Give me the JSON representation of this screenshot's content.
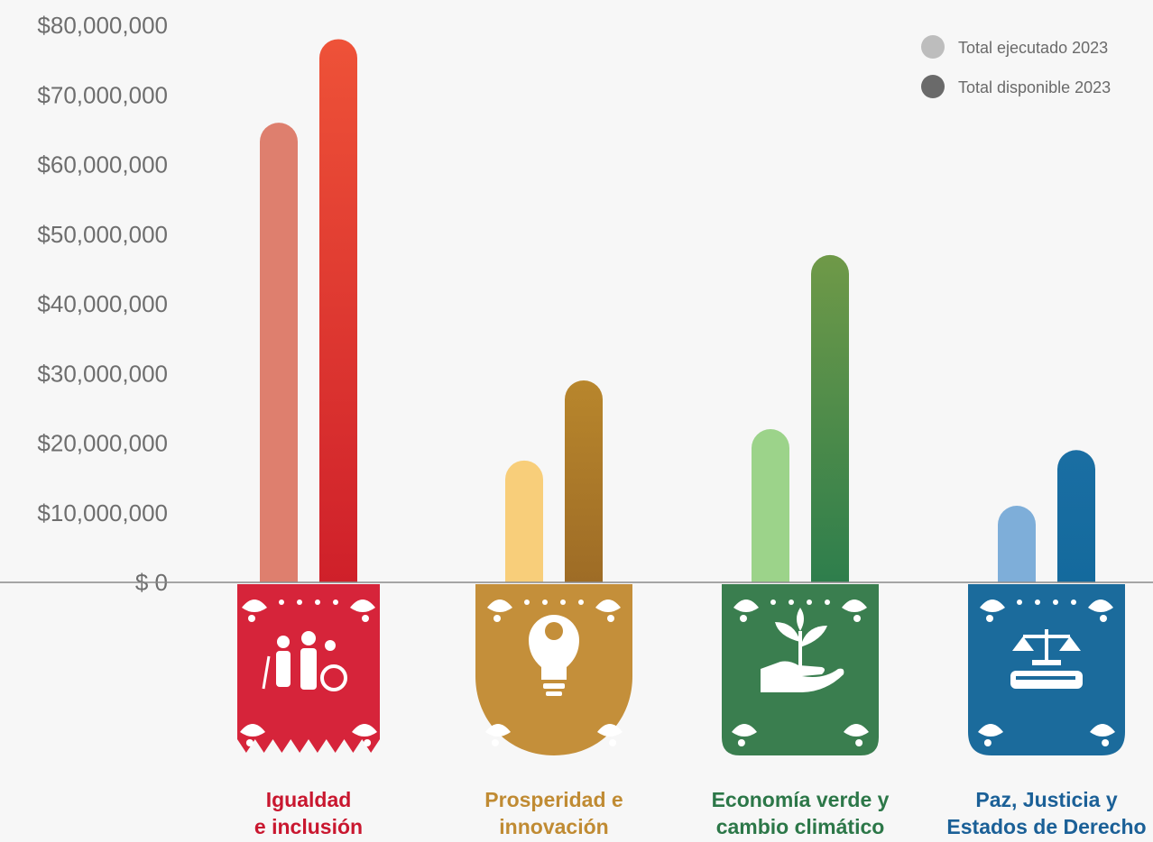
{
  "chart_data": {
    "type": "bar",
    "categories": [
      [
        "Igualdad",
        "e inclusión"
      ],
      [
        "Prosperidad e",
        "innovación"
      ],
      [
        "Economía verde y",
        "cambio climático"
      ],
      [
        "Paz, Justicia y",
        "Estados de Derecho"
      ]
    ],
    "series": [
      {
        "name": "Total ejecutado 2023",
        "values": [
          66000000,
          17500000,
          22000000,
          11000000
        ]
      },
      {
        "name": "Total disponible 2023",
        "values": [
          78000000,
          29000000,
          47000000,
          19000000
        ]
      }
    ],
    "ylim": [
      0,
      80000000
    ],
    "yticks": [
      "$ 0",
      "$10,000,000",
      "$20,000,000",
      "$30,000,000",
      "$40,000,000",
      "$50,000,000",
      "$60,000,000",
      "$70,000,000",
      "$80,000,000"
    ],
    "legend_position": "top-right",
    "grid": false
  },
  "colors": {
    "executed": [
      "#de7f6e",
      "#f8ce7a",
      "#9cd38a",
      "#7eaed9"
    ],
    "available_top": [
      "#ee5238",
      "#b8862c",
      "#6f9948",
      "#1a6ea3"
    ],
    "available_bottom": [
      "#cf202a",
      "#9e6c26",
      "#2e7e4c",
      "#146a9d"
    ],
    "banner": [
      "#d6243a",
      "#c48f3a",
      "#3a7e4f",
      "#1b6b9c"
    ],
    "label": [
      "#c9172f",
      "#c08b33",
      "#2c7748",
      "#1b6097"
    ],
    "legend_dots": [
      "#bdbdbd",
      "#6a6a6a"
    ]
  },
  "icons": [
    "people-disability-icon",
    "lightbulb-gear-icon",
    "hand-plant-icon",
    "justice-scale-book-icon"
  ]
}
